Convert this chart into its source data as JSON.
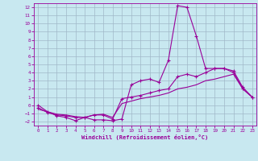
{
  "title": "",
  "xlabel": "Windchill (Refroidissement éolien,°C)",
  "ylabel": "",
  "bg_color": "#c8e8f0",
  "line_color": "#990099",
  "grid_color": "#a0b8c8",
  "xlim": [
    -0.5,
    23.5
  ],
  "ylim": [
    -2.5,
    12.5
  ],
  "xticks": [
    0,
    1,
    2,
    3,
    4,
    5,
    6,
    7,
    8,
    9,
    10,
    11,
    12,
    13,
    14,
    15,
    16,
    17,
    18,
    19,
    20,
    21,
    22,
    23
  ],
  "yticks": [
    -2,
    -1,
    0,
    1,
    2,
    3,
    4,
    5,
    6,
    7,
    8,
    9,
    10,
    11,
    12
  ],
  "line1_x": [
    0,
    1,
    2,
    3,
    4,
    5,
    6,
    7,
    8,
    9,
    10,
    11,
    12,
    13,
    14,
    15,
    16,
    17,
    18,
    19,
    20,
    21,
    22,
    23
  ],
  "line1_y": [
    0.0,
    -0.8,
    -1.3,
    -1.5,
    -1.9,
    -1.5,
    -1.8,
    -1.8,
    -1.9,
    -1.7,
    2.5,
    3.0,
    3.2,
    2.8,
    5.5,
    12.2,
    12.0,
    8.5,
    4.5,
    4.5,
    4.5,
    4.0,
    2.0,
    1.0
  ],
  "line2_x": [
    0,
    1,
    2,
    3,
    4,
    5,
    6,
    7,
    8,
    9,
    10,
    11,
    12,
    13,
    14,
    15,
    16,
    17,
    18,
    19,
    20,
    21,
    22,
    23
  ],
  "line2_y": [
    -0.3,
    -0.9,
    -1.2,
    -1.3,
    -1.5,
    -1.5,
    -1.2,
    -1.2,
    -1.7,
    0.8,
    1.0,
    1.2,
    1.5,
    1.8,
    2.0,
    3.5,
    3.8,
    3.5,
    4.0,
    4.5,
    4.5,
    4.2,
    2.2,
    1.0
  ],
  "line3_x": [
    0,
    1,
    2,
    3,
    4,
    5,
    6,
    7,
    8,
    9,
    10,
    11,
    12,
    13,
    14,
    15,
    16,
    17,
    18,
    19,
    20,
    21,
    22,
    23
  ],
  "line3_y": [
    -0.5,
    -0.8,
    -1.1,
    -1.2,
    -1.4,
    -1.5,
    -1.2,
    -1.1,
    -1.5,
    0.2,
    0.5,
    0.8,
    1.0,
    1.2,
    1.5,
    2.0,
    2.2,
    2.5,
    3.0,
    3.2,
    3.5,
    3.8,
    2.0,
    1.0
  ]
}
